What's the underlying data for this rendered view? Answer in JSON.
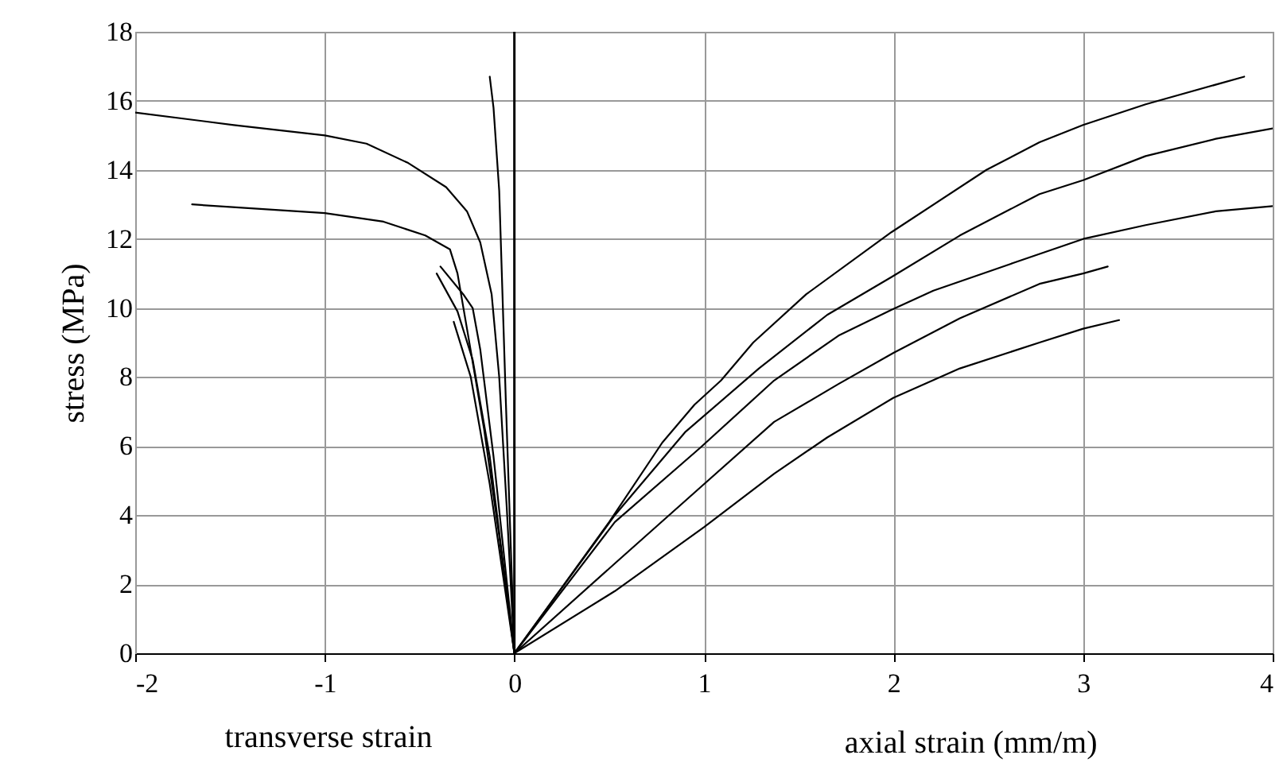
{
  "chart_data": {
    "type": "line",
    "xlabel": "axial strain (mm/m)",
    "ylabel": "stress (MPa)",
    "annotations": [
      "transverse strain"
    ],
    "xlim": [
      -2,
      4
    ],
    "xticks": [
      -2,
      -1,
      0,
      1,
      2,
      3,
      4
    ],
    "ylim": [
      0,
      18
    ],
    "yticks": [
      0,
      2,
      4,
      6,
      8,
      10,
      12,
      14,
      16,
      18
    ],
    "grid": true,
    "legend": false,
    "marker": "none",
    "line_style": "solid",
    "ref_lines": [
      {
        "axis": "x",
        "value": 0,
        "color": "#000000"
      }
    ],
    "series": [
      {
        "color": "#000000",
        "x": [
          0,
          0.5,
          0.78,
          0.95,
          1.09,
          1.26,
          1.54,
          1.99,
          2.49,
          2.77,
          3.0,
          3.33,
          3.85
        ],
        "values": [
          0,
          3.8,
          6.1,
          7.2,
          7.9,
          9.0,
          10.4,
          12.2,
          14.0,
          14.8,
          15.3,
          15.9,
          16.7
        ]
      },
      {
        "color": "#000000",
        "x": [
          0,
          0.53,
          0.9,
          1.29,
          1.65,
          1.99,
          2.35,
          2.77,
          3.0,
          3.33,
          3.7,
          4.0
        ],
        "values": [
          0,
          4.0,
          6.4,
          8.25,
          9.8,
          10.9,
          12.1,
          13.3,
          13.7,
          14.4,
          14.9,
          15.2
        ]
      },
      {
        "color": "#000000",
        "x": [
          0,
          0.53,
          0.98,
          1.37,
          1.71,
          1.99,
          2.21,
          2.63,
          3.0,
          3.33,
          3.7,
          4.0
        ],
        "values": [
          0,
          3.8,
          5.95,
          7.9,
          9.2,
          9.95,
          10.5,
          11.3,
          12.0,
          12.4,
          12.8,
          12.95
        ]
      },
      {
        "color": "#000000",
        "x": [
          0,
          0.53,
          0.98,
          1.37,
          1.71,
          2.0,
          2.35,
          2.77,
          3.0,
          3.13
        ],
        "values": [
          0,
          2.6,
          4.8,
          6.7,
          7.8,
          8.7,
          9.7,
          10.7,
          11.0,
          11.2
        ]
      },
      {
        "color": "#000000",
        "x": [
          0,
          0.53,
          1.0,
          1.37,
          1.65,
          2.0,
          2.35,
          2.77,
          3.0,
          3.19
        ],
        "values": [
          0,
          1.8,
          3.65,
          5.2,
          6.25,
          7.4,
          8.25,
          9.0,
          9.4,
          9.65
        ]
      },
      {
        "color": "#000000",
        "x": [
          -2,
          -1.48,
          -1.0,
          -0.78,
          -0.56,
          -0.36,
          -0.25,
          -0.18,
          -0.12,
          -0.08,
          -0.04,
          0
        ],
        "values": [
          15.66,
          15.3,
          15.0,
          14.76,
          14.2,
          13.5,
          12.8,
          11.9,
          10.4,
          8.0,
          4.2,
          0
        ]
      },
      {
        "color": "#000000",
        "x": [
          -1.7,
          -1.0,
          -0.69,
          -0.47,
          -0.34,
          -0.3,
          -0.25,
          -0.16,
          -0.08,
          0
        ],
        "values": [
          13.0,
          12.75,
          12.5,
          12.1,
          11.7,
          11.0,
          9.4,
          6.5,
          3.4,
          0
        ]
      },
      {
        "color": "#000000",
        "x": [
          -0.13,
          -0.11,
          -0.08,
          -0.045,
          0
        ],
        "values": [
          16.7,
          15.8,
          13.4,
          7.3,
          0
        ]
      },
      {
        "color": "#000000",
        "x": [
          -0.39,
          -0.27,
          -0.22,
          -0.18,
          -0.11,
          0
        ],
        "values": [
          11.2,
          10.4,
          10.0,
          8.8,
          5.7,
          0
        ]
      },
      {
        "color": "#000000",
        "x": [
          -0.41,
          -0.3,
          -0.22,
          -0.13,
          0
        ],
        "values": [
          11.0,
          9.9,
          8.5,
          5.7,
          0
        ]
      },
      {
        "color": "#000000",
        "x": [
          -0.32,
          -0.23,
          -0.13,
          0
        ],
        "values": [
          9.6,
          8.0,
          4.9,
          0
        ]
      }
    ]
  }
}
